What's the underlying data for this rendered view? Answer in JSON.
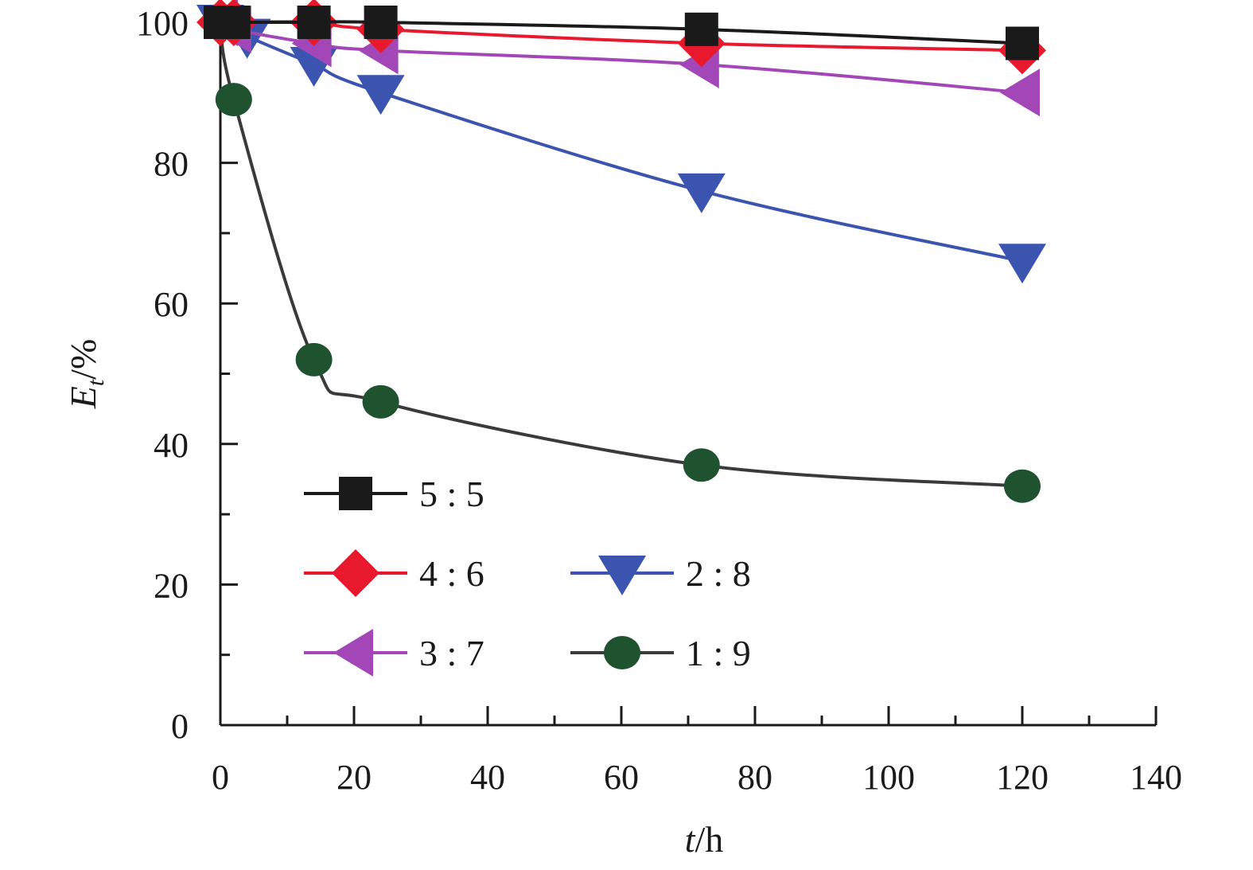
{
  "chart_data": {
    "type": "line",
    "xlabel": {
      "italic": "t",
      "rest": "/h"
    },
    "ylabel": {
      "main": "E",
      "sub": "t",
      "rest": "/%"
    },
    "xlim": [
      0,
      140
    ],
    "ylim": [
      0,
      100
    ],
    "x_ticks": [
      "0",
      "20",
      "40",
      "60",
      "80",
      "100",
      "120",
      "140"
    ],
    "y_ticks": [
      "0",
      "20",
      "40",
      "60",
      "80",
      "100"
    ],
    "grid": false,
    "legend_position": "bottom-left inside",
    "series": [
      {
        "name": "5 : 5",
        "color": "#1a1a1a",
        "marker": "square",
        "x": [
          0,
          2,
          14,
          24,
          72,
          120
        ],
        "y": [
          100,
          100,
          100,
          100,
          99,
          97
        ]
      },
      {
        "name": "4 : 6",
        "color": "#e8192c",
        "marker": "diamond",
        "x": [
          0,
          2,
          14,
          24,
          72,
          120
        ],
        "y": [
          100,
          100,
          100,
          99,
          97,
          96
        ]
      },
      {
        "name": "3 : 7",
        "color": "#a347b8",
        "marker": "triangle-left",
        "x": [
          0,
          2,
          14,
          24,
          72,
          120
        ],
        "y": [
          100,
          99,
          97,
          96,
          94,
          90
        ]
      },
      {
        "name": "2 : 8",
        "color": "#3b54b0",
        "marker": "triangle-down",
        "x": [
          0,
          4,
          14,
          24,
          72,
          120
        ],
        "y": [
          100,
          98,
          94,
          90,
          76,
          66
        ]
      },
      {
        "name": "1 : 9",
        "color": "#1f5330",
        "line_color": "#3a3a3a",
        "marker": "circle",
        "x": [
          0,
          2,
          14,
          24,
          72,
          120
        ],
        "y": [
          100,
          89,
          52,
          46,
          37,
          34
        ]
      }
    ]
  }
}
